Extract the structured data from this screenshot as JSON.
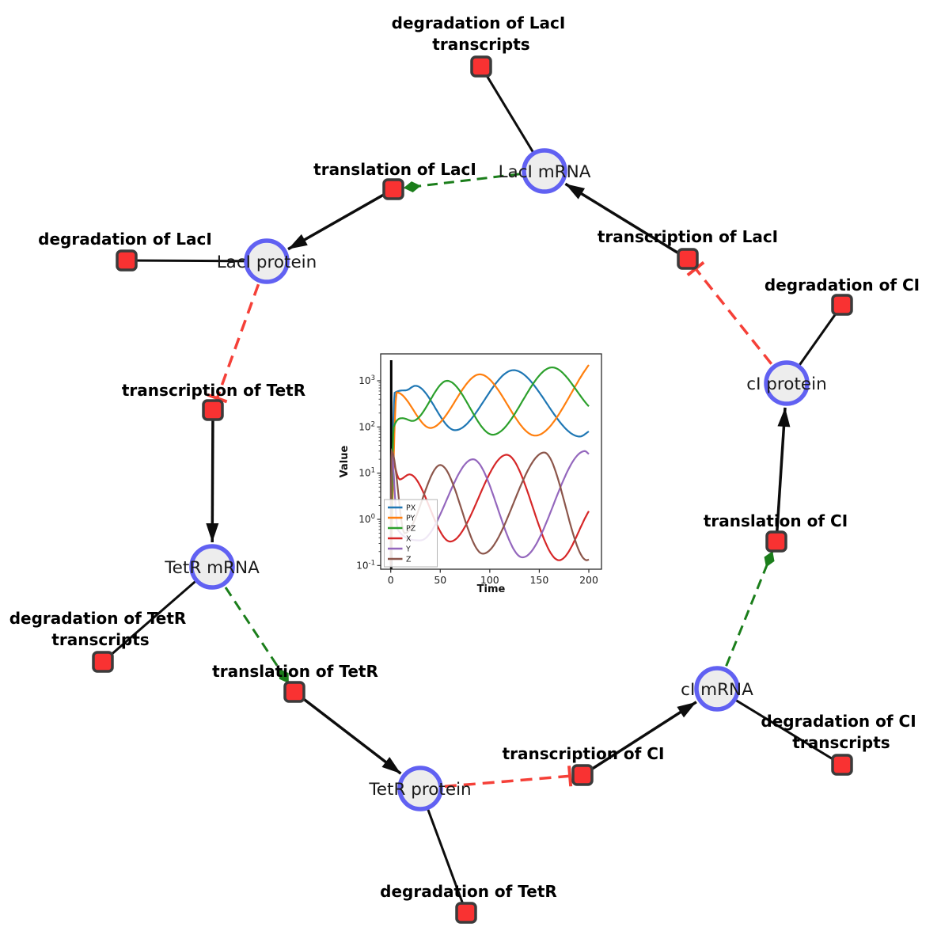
{
  "network": {
    "colors": {
      "species_fill": "#ededed",
      "species_stroke": "#6161f2",
      "reaction_fill": "#f93232",
      "reaction_stroke": "#3b3b3b",
      "edge_black": "#0d0d0d",
      "edge_green": "#1b7e1b",
      "edge_red": "#f54038"
    },
    "species": [
      {
        "id": "laci-mrna",
        "label": "LacI mRNA"
      },
      {
        "id": "laci-protein",
        "label": "LacI protein"
      },
      {
        "id": "tetr-mrna",
        "label": "TetR mRNA"
      },
      {
        "id": "tetr-protein",
        "label": "TetR protein"
      },
      {
        "id": "ci-mrna",
        "label": "cI mRNA"
      },
      {
        "id": "ci-protein",
        "label": "cI protein"
      }
    ],
    "reactions": [
      {
        "id": "deg-laci-transcripts",
        "label_lines": [
          "degradation of LacI",
          "transcripts"
        ]
      },
      {
        "id": "translation-laci",
        "label_lines": [
          "translation of LacI"
        ]
      },
      {
        "id": "deg-laci",
        "label_lines": [
          "degradation of LacI"
        ]
      },
      {
        "id": "transcription-laci",
        "label_lines": [
          "transcription of LacI"
        ]
      },
      {
        "id": "deg-ci",
        "label_lines": [
          "degradation of CI"
        ]
      },
      {
        "id": "transcription-tetr",
        "label_lines": [
          "transcription of TetR"
        ]
      },
      {
        "id": "deg-tetr-transcripts",
        "label_lines": [
          "degradation of TetR",
          "transcripts"
        ]
      },
      {
        "id": "translation-tetr",
        "label_lines": [
          "translation of TetR"
        ]
      },
      {
        "id": "deg-tetr",
        "label_lines": [
          "degradation of TetR"
        ]
      },
      {
        "id": "transcription-ci",
        "label_lines": [
          "transcription of CI"
        ]
      },
      {
        "id": "deg-ci-transcripts",
        "label_lines": [
          "degradation of CI",
          "transcripts"
        ]
      },
      {
        "id": "translation-ci",
        "label_lines": [
          "translation of CI"
        ]
      }
    ]
  },
  "chart_data": {
    "type": "line",
    "title": "",
    "xlabel": "Time",
    "ylabel": "Value",
    "yscale": "log",
    "xlim": [
      0,
      200
    ],
    "ylim_exponents": [
      -1,
      3.6
    ],
    "xticks": [
      0,
      50,
      100,
      150,
      200
    ],
    "ytick_exponents": [
      -1,
      0,
      1,
      2,
      3
    ],
    "grid": false,
    "legend_position": "lower left",
    "t0_event_line": 0,
    "series": [
      {
        "name": "PX",
        "color": "#1f77b4",
        "keypoints": [
          [
            0,
            0.1
          ],
          [
            4,
            550
          ],
          [
            15,
            620
          ],
          [
            25,
            780
          ],
          [
            65,
            85
          ],
          [
            124,
            1700
          ],
          [
            191,
            62
          ],
          [
            200,
            80
          ]
        ]
      },
      {
        "name": "PY",
        "color": "#ff7f0e",
        "keypoints": [
          [
            0,
            0.1
          ],
          [
            6,
            560
          ],
          [
            40,
            95
          ],
          [
            90,
            1380
          ],
          [
            146,
            65
          ],
          [
            200,
            2200
          ]
        ]
      },
      {
        "name": "PZ",
        "color": "#2ca02c",
        "keypoints": [
          [
            0,
            0.1
          ],
          [
            3,
            100
          ],
          [
            12,
            155
          ],
          [
            22,
            135
          ],
          [
            57,
            1000
          ],
          [
            103,
            68
          ],
          [
            163,
            1950
          ],
          [
            200,
            280
          ]
        ]
      },
      {
        "name": "X",
        "color": "#d62728",
        "keypoints": [
          [
            0,
            0.1
          ],
          [
            1,
            20
          ],
          [
            9,
            7.3
          ],
          [
            19,
            9.4
          ],
          [
            60,
            0.33
          ],
          [
            117,
            25
          ],
          [
            170,
            0.13
          ],
          [
            200,
            1.5
          ]
        ]
      },
      {
        "name": "Y",
        "color": "#9467bd",
        "keypoints": [
          [
            0,
            0.1
          ],
          [
            1,
            25
          ],
          [
            7,
            0.6
          ],
          [
            30,
            0.35
          ],
          [
            83,
            20
          ],
          [
            133,
            0.15
          ],
          [
            196,
            30
          ],
          [
            200,
            26
          ]
        ]
      },
      {
        "name": "Z",
        "color": "#8c564b",
        "keypoints": [
          [
            0,
            0.1
          ],
          [
            1,
            30
          ],
          [
            14,
            0.5
          ],
          [
            50,
            15
          ],
          [
            93,
            0.18
          ],
          [
            155,
            28
          ],
          [
            198,
            0.13
          ],
          [
            200,
            0.135
          ]
        ]
      }
    ]
  }
}
